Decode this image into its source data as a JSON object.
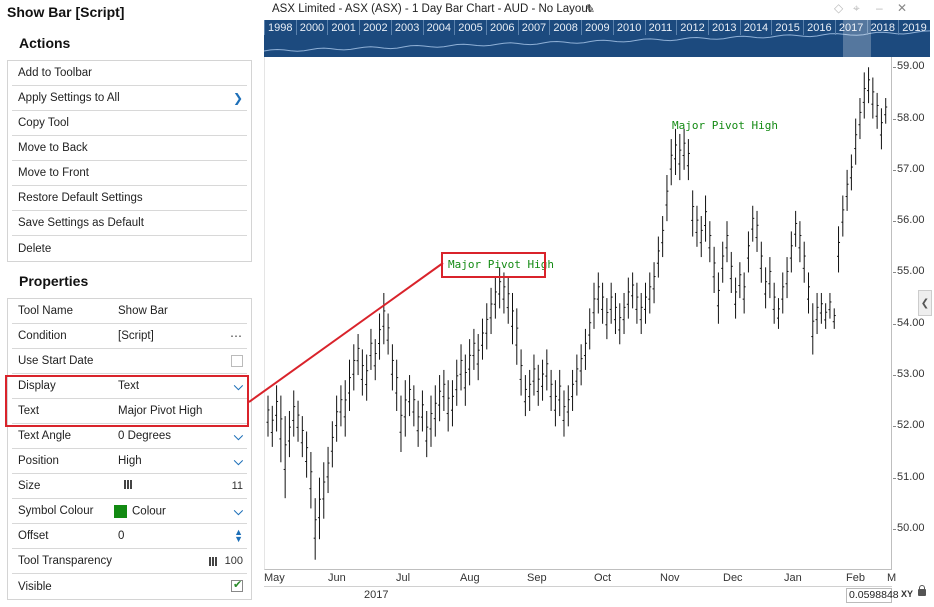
{
  "panel": {
    "title": "Show Bar [Script]",
    "actions_heading": "Actions",
    "actions": [
      {
        "label": "Add to Toolbar"
      },
      {
        "label": "Apply Settings to All",
        "chevron": "chevron-right-icon"
      },
      {
        "label": "Copy Tool"
      },
      {
        "label": "Move to Back"
      },
      {
        "label": "Move to Front"
      },
      {
        "label": "Restore Default Settings"
      },
      {
        "label": "Save Settings as Default"
      },
      {
        "label": "Delete"
      }
    ],
    "properties_heading": "Properties",
    "properties": {
      "tool_name": {
        "label": "Tool Name",
        "value": "Show Bar"
      },
      "condition": {
        "label": "Condition",
        "value": "[Script]",
        "more": "⋯"
      },
      "use_start_date": {
        "label": "Use Start Date",
        "checked": false
      },
      "display": {
        "label": "Display",
        "value": "Text"
      },
      "text": {
        "label": "Text",
        "value": "Major Pivot High"
      },
      "text_angle": {
        "label": "Text Angle",
        "value": "0 Degrees"
      },
      "position": {
        "label": "Position",
        "value": "High"
      },
      "size": {
        "label": "Size",
        "value": "11"
      },
      "symbol_colour": {
        "label": "Symbol Colour",
        "value": "Colour",
        "color": "#128a12"
      },
      "offset": {
        "label": "Offset",
        "value": "0"
      },
      "tool_transparency": {
        "label": "Tool Transparency",
        "value": "100"
      },
      "visible": {
        "label": "Visible",
        "checked": true
      }
    }
  },
  "chart": {
    "title": "ASX Limited - ASX (ASX) - 1 Day Bar Chart - AUD - No Layout",
    "overview_years": [
      "1998",
      "2000",
      "2001",
      "2002",
      "2003",
      "2004",
      "2005",
      "2006",
      "2007",
      "2008",
      "2009",
      "2010",
      "2011",
      "2012",
      "2013",
      "2014",
      "2015",
      "2016",
      "2017",
      "2018",
      "2019"
    ],
    "x_ticks": [
      "May",
      "Jun",
      "Jul",
      "Aug",
      "Sep",
      "Oct",
      "Nov",
      "Dec",
      "Jan",
      "Feb",
      "M"
    ],
    "x_year": "2017",
    "xy_readout": "0.0598848",
    "xy_label": "XY",
    "pivot_labels": [
      "Major Pivot High",
      "Major Pivot High"
    ],
    "colors": {
      "overview": "#1c4a7e",
      "pivot": "#138a13",
      "highlight": "#d9232b",
      "bars": "#111111"
    }
  },
  "chart_data": {
    "type": "bar",
    "subtype": "ohlc",
    "title": "ASX Limited - ASX (ASX) - 1 Day Bar Chart - AUD - No Layout",
    "x_ticks": [
      "May",
      "Jun",
      "Jul",
      "Aug",
      "Sep",
      "Oct",
      "Nov",
      "Dec",
      "Jan",
      "Feb",
      "M"
    ],
    "x_year": "2017",
    "y_ticks": [
      "50.00",
      "51.00",
      "52.00",
      "53.00",
      "54.00",
      "55.00",
      "56.00",
      "57.00",
      "58.00",
      "59.00"
    ],
    "ylim": [
      49.2,
      59.2
    ],
    "grid": false,
    "annotations": [
      {
        "text": "Major Pivot High",
        "month": "Aug",
        "price": 55.1
      },
      {
        "text": "Major Pivot High",
        "month": "Nov",
        "price": 57.8
      }
    ],
    "bars": [
      [
        51.8,
        52.6
      ],
      [
        51.6,
        52.4
      ],
      [
        51.9,
        52.8
      ],
      [
        51.3,
        52.6
      ],
      [
        50.6,
        52.2
      ],
      [
        51.4,
        52.3
      ],
      [
        51.8,
        52.7
      ],
      [
        51.7,
        52.5
      ],
      [
        51.4,
        52.2
      ],
      [
        51.0,
        51.9
      ],
      [
        50.4,
        51.5
      ],
      [
        49.4,
        50.6
      ],
      [
        49.8,
        51.0
      ],
      [
        50.2,
        51.3
      ],
      [
        50.7,
        51.6
      ],
      [
        51.2,
        52.1
      ],
      [
        51.7,
        52.6
      ],
      [
        52.0,
        52.8
      ],
      [
        51.8,
        52.9
      ],
      [
        52.3,
        53.3
      ],
      [
        52.7,
        53.6
      ],
      [
        53.0,
        53.8
      ],
      [
        52.6,
        53.5
      ],
      [
        52.5,
        53.4
      ],
      [
        53.1,
        53.9
      ],
      [
        52.9,
        53.7
      ],
      [
        53.3,
        54.2
      ],
      [
        53.6,
        54.6
      ],
      [
        53.4,
        54.2
      ],
      [
        52.7,
        53.6
      ],
      [
        52.3,
        53.3
      ],
      [
        51.5,
        52.6
      ],
      [
        51.8,
        52.9
      ],
      [
        52.2,
        53.0
      ],
      [
        52.0,
        52.8
      ],
      [
        51.6,
        52.5
      ],
      [
        51.9,
        52.7
      ],
      [
        51.4,
        52.3
      ],
      [
        51.6,
        52.6
      ],
      [
        51.8,
        52.8
      ],
      [
        52.1,
        53.0
      ],
      [
        52.3,
        53.1
      ],
      [
        51.9,
        52.9
      ],
      [
        52.0,
        52.9
      ],
      [
        52.4,
        53.3
      ],
      [
        52.7,
        53.6
      ],
      [
        52.4,
        53.4
      ],
      [
        52.8,
        53.7
      ],
      [
        53.1,
        53.9
      ],
      [
        52.9,
        53.8
      ],
      [
        53.3,
        54.1
      ],
      [
        53.5,
        54.4
      ],
      [
        53.8,
        54.7
      ],
      [
        54.1,
        54.9
      ],
      [
        54.3,
        55.1
      ],
      [
        54.2,
        55.0
      ],
      [
        54.0,
        54.9
      ],
      [
        53.6,
        54.6
      ],
      [
        53.2,
        54.3
      ],
      [
        52.6,
        53.5
      ],
      [
        52.2,
        53.0
      ],
      [
        52.3,
        53.1
      ],
      [
        52.6,
        53.4
      ],
      [
        52.4,
        53.2
      ],
      [
        52.5,
        53.3
      ],
      [
        52.7,
        53.5
      ],
      [
        52.3,
        53.1
      ],
      [
        52.0,
        52.9
      ],
      [
        52.2,
        53.1
      ],
      [
        51.8,
        52.7
      ],
      [
        52.0,
        52.8
      ],
      [
        52.3,
        53.1
      ],
      [
        52.6,
        53.4
      ],
      [
        52.8,
        53.6
      ],
      [
        53.1,
        53.9
      ],
      [
        53.5,
        54.3
      ],
      [
        53.9,
        54.8
      ],
      [
        54.2,
        55.0
      ],
      [
        54.0,
        54.8
      ],
      [
        53.7,
        54.5
      ],
      [
        54.0,
        54.8
      ],
      [
        53.8,
        54.6
      ],
      [
        53.6,
        54.4
      ],
      [
        53.8,
        54.6
      ],
      [
        54.1,
        54.9
      ],
      [
        54.3,
        55.0
      ],
      [
        54.0,
        54.8
      ],
      [
        53.8,
        54.6
      ],
      [
        54.0,
        54.8
      ],
      [
        54.2,
        55.0
      ],
      [
        54.4,
        55.2
      ],
      [
        54.9,
        55.7
      ],
      [
        55.3,
        56.1
      ],
      [
        56.0,
        56.9
      ],
      [
        56.7,
        57.6
      ],
      [
        56.9,
        57.8
      ],
      [
        56.8,
        57.7
      ],
      [
        57.0,
        57.8
      ],
      [
        56.8,
        57.6
      ],
      [
        55.7,
        56.6
      ],
      [
        55.5,
        56.3
      ],
      [
        55.3,
        56.1
      ],
      [
        55.6,
        56.5
      ],
      [
        55.2,
        56.0
      ],
      [
        54.6,
        55.5
      ],
      [
        54.0,
        55.0
      ],
      [
        54.8,
        55.6
      ],
      [
        55.2,
        56.0
      ],
      [
        54.6,
        55.4
      ],
      [
        54.1,
        54.9
      ],
      [
        54.5,
        55.2
      ],
      [
        54.2,
        55.0
      ],
      [
        55.0,
        55.8
      ],
      [
        55.6,
        56.3
      ],
      [
        55.4,
        56.2
      ],
      [
        54.8,
        55.6
      ],
      [
        54.3,
        55.1
      ],
      [
        54.5,
        55.3
      ],
      [
        54.0,
        54.8
      ],
      [
        53.9,
        54.5
      ],
      [
        54.2,
        55.0
      ],
      [
        54.5,
        55.3
      ],
      [
        55.0,
        55.8
      ],
      [
        55.5,
        56.2
      ],
      [
        55.2,
        56.0
      ],
      [
        54.8,
        55.6
      ],
      [
        54.2,
        55.0
      ],
      [
        53.4,
        54.4
      ],
      [
        53.8,
        54.6
      ],
      [
        54.0,
        54.6
      ],
      [
        53.9,
        54.4
      ],
      [
        54.1,
        54.6
      ],
      [
        53.9,
        54.3
      ],
      [
        55.0,
        55.9
      ],
      [
        55.7,
        56.5
      ],
      [
        56.2,
        57.0
      ],
      [
        56.6,
        57.3
      ],
      [
        57.1,
        58.0
      ],
      [
        57.6,
        58.4
      ],
      [
        58.0,
        58.9
      ],
      [
        58.3,
        59.0
      ],
      [
        58.0,
        58.8
      ],
      [
        57.8,
        58.5
      ],
      [
        57.4,
        58.2
      ],
      [
        57.9,
        58.4
      ]
    ]
  }
}
